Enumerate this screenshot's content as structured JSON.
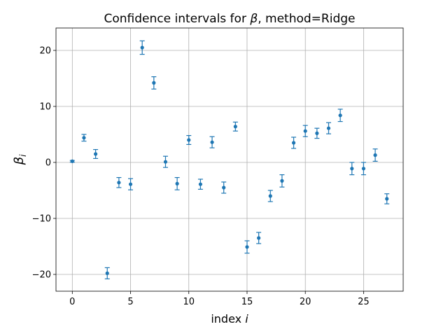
{
  "chart_data": {
    "type": "scatter",
    "title": "Confidence intervals for β, method=Ridge",
    "xlabel": "index i",
    "ylabel": "βi",
    "xlim": [
      -1.4,
      28.4
    ],
    "ylim": [
      -23,
      24
    ],
    "xticks": [
      0,
      5,
      10,
      15,
      20,
      25
    ],
    "yticks": [
      -20,
      -10,
      0,
      10,
      20
    ],
    "ytick_labels": [
      "−20",
      "−10",
      "0",
      "10",
      "20"
    ],
    "grid": true,
    "color": "#1f77b4",
    "series": [
      {
        "x": [
          0,
          1,
          2,
          3,
          4,
          5,
          6,
          7,
          8,
          9,
          10,
          11,
          12,
          13,
          14,
          15,
          16,
          17,
          18,
          19,
          20,
          21,
          22,
          23,
          24,
          25,
          26,
          27
        ],
        "y": [
          0.2,
          4.4,
          1.5,
          -19.8,
          -3.6,
          -3.9,
          20.5,
          14.2,
          0.1,
          -3.8,
          4.0,
          -3.9,
          3.6,
          -4.5,
          6.4,
          -15.1,
          -13.5,
          -6.0,
          -3.3,
          3.5,
          5.6,
          5.2,
          6.1,
          8.4,
          -1.1,
          -1.1,
          1.3,
          -6.5
        ],
        "err": [
          0.15,
          0.6,
          0.8,
          1.0,
          0.9,
          1.0,
          1.2,
          1.1,
          1.0,
          1.1,
          0.8,
          0.9,
          1.0,
          1.0,
          0.8,
          1.1,
          1.0,
          1.0,
          1.1,
          1.0,
          1.0,
          0.9,
          1.0,
          1.1,
          1.1,
          1.1,
          1.1,
          0.9
        ]
      }
    ]
  }
}
